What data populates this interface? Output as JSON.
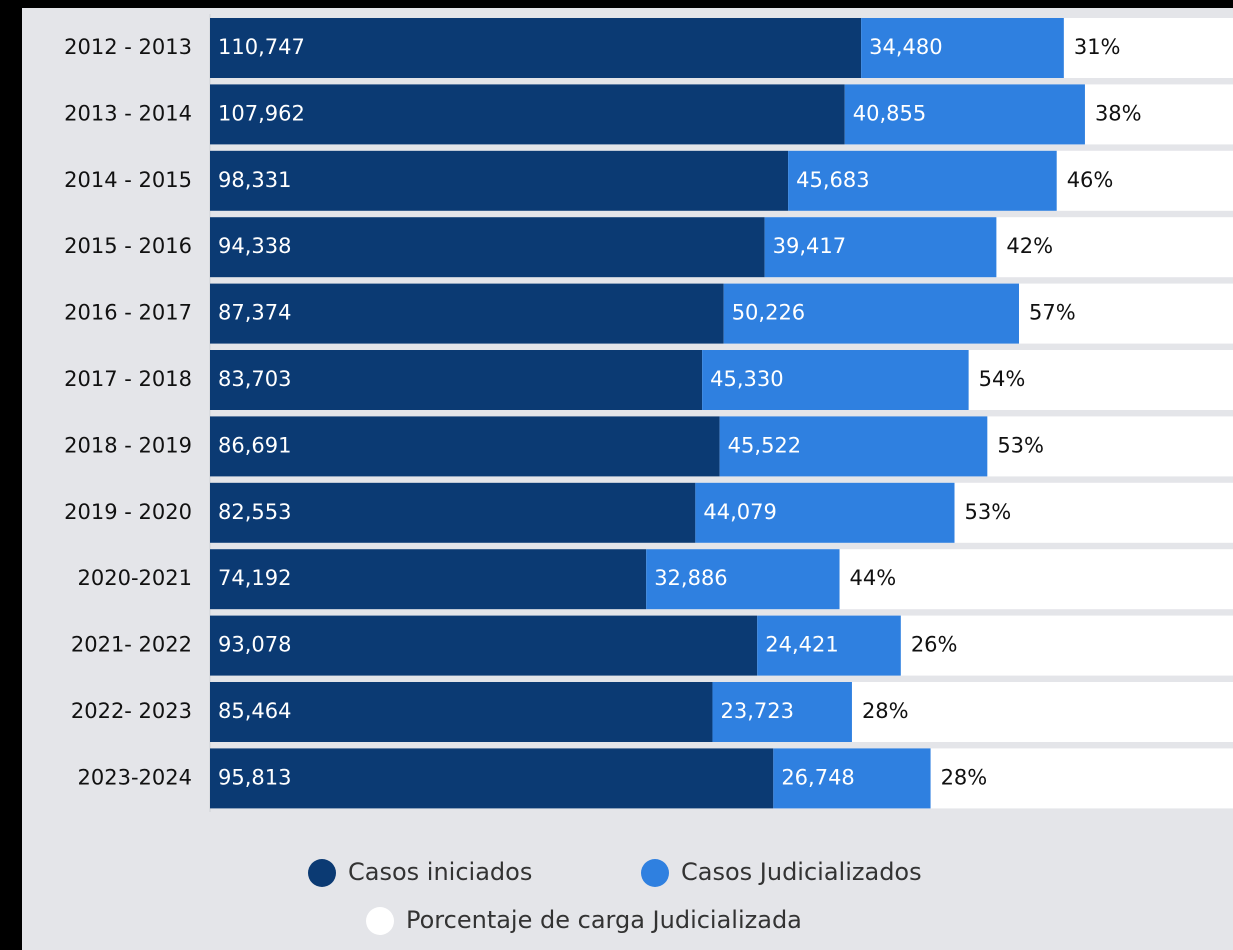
{
  "chart_data": {
    "type": "stacked-bar",
    "orientation": "horizontal",
    "categories": [
      "2012 - 2013",
      "2013 - 2014",
      "2014 - 2015",
      "2015 - 2016",
      "2016 - 2017",
      "2017 - 2018",
      "2018 - 2019",
      "2019 - 2020",
      "2020-2021",
      "2021- 2022",
      "2022- 2023",
      "2023-2024"
    ],
    "xlim": [
      0,
      174000
    ],
    "series": [
      {
        "name": "Casos iniciados",
        "color": "#0b3a73",
        "values": [
          110747,
          107962,
          98331,
          94338,
          87374,
          83703,
          86691,
          82553,
          74192,
          93078,
          85464,
          95813
        ],
        "value_labels": [
          "110,747",
          "107,962",
          "98,331",
          "94,338",
          "87,374",
          "83,703",
          "86,691",
          "82,553",
          "74,192",
          "93,078",
          "85,464",
          "95,813"
        ]
      },
      {
        "name": "Casos Judicializados",
        "color": "#2f80e0",
        "values": [
          34480,
          40855,
          45683,
          39417,
          50226,
          45330,
          45522,
          44079,
          32886,
          24421,
          23723,
          26748
        ],
        "value_labels": [
          "34,480",
          "40,855",
          "45,683",
          "39,417",
          "50,226",
          "45,330",
          "45,522",
          "44,079",
          "32,886",
          "24,421",
          "23,723",
          "26,748"
        ]
      },
      {
        "name": "Porcentaje de carga Judicializada",
        "color": "#ffffff",
        "values": [
          31,
          38,
          46,
          42,
          57,
          54,
          53,
          53,
          44,
          26,
          28,
          28
        ],
        "value_labels": [
          "31%",
          "38%",
          "46%",
          "42%",
          "57%",
          "54%",
          "53%",
          "53%",
          "44%",
          "26%",
          "28%",
          "28%"
        ]
      }
    ]
  }
}
